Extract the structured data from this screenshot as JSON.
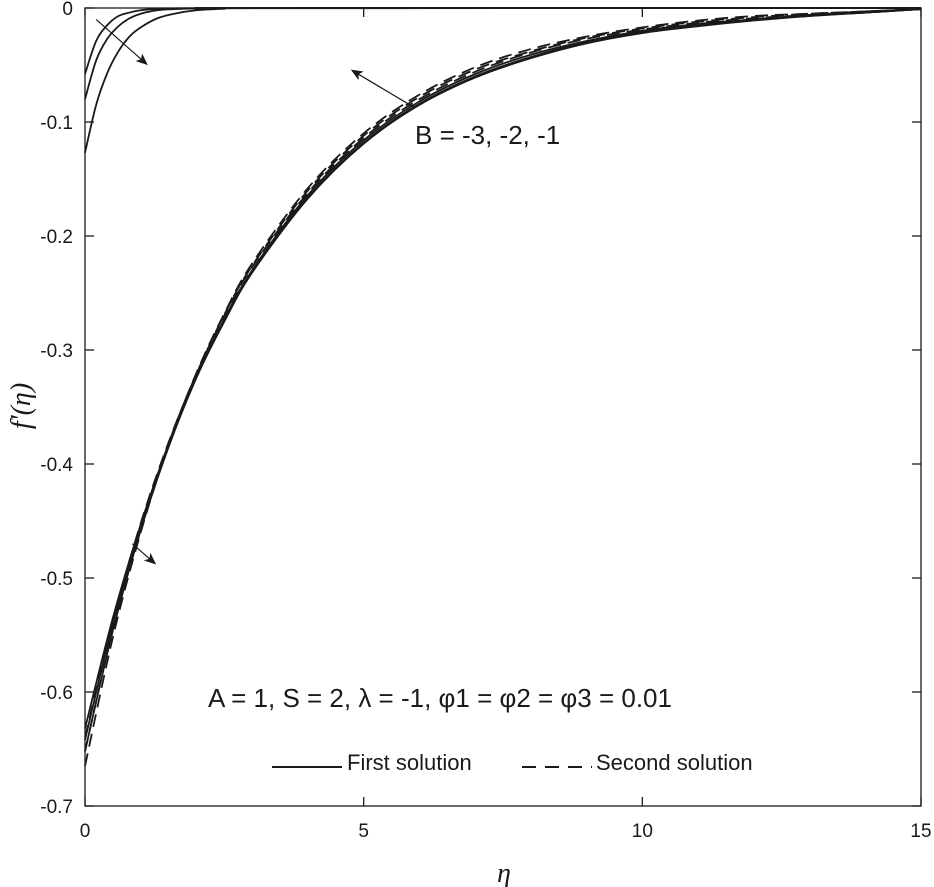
{
  "chart_data": {
    "type": "line",
    "xlabel": "η",
    "ylabel": "f'(η)",
    "xlim": [
      0,
      15
    ],
    "ylim": [
      -0.7,
      0
    ],
    "xticks": [
      "0",
      "5",
      "10",
      "15"
    ],
    "yticks": [
      "0",
      "-0.1",
      "-0.2",
      "-0.3",
      "-0.4",
      "-0.5",
      "-0.6",
      "-0.7"
    ],
    "grid": false,
    "parameter_label": "B = -3, -2, -1",
    "conditions_label": "A = 1,  S = 2,  λ = -1,  φ1 =  φ2 =  φ3 = 0.01",
    "legend": {
      "placement": "bottom-center",
      "entries": [
        {
          "label": "First solution",
          "style": "solid"
        },
        {
          "label": "Second solution",
          "style": "dashed"
        }
      ]
    },
    "series": [
      {
        "style": "solid",
        "group": "upper",
        "x": [
          0,
          0.2,
          0.4,
          0.6,
          0.8,
          1.0,
          1.3,
          1.6,
          2.0,
          2.5,
          3.0
        ],
        "y": [
          -0.127,
          -0.085,
          -0.057,
          -0.038,
          -0.025,
          -0.017,
          -0.009,
          -0.005,
          -0.002,
          -0.0007,
          -0.0002
        ]
      },
      {
        "style": "solid",
        "group": "upper",
        "x": [
          0,
          0.2,
          0.4,
          0.6,
          0.8,
          1.0,
          1.3,
          1.6,
          2.0,
          2.5,
          3.0
        ],
        "y": [
          -0.08,
          -0.046,
          -0.027,
          -0.016,
          -0.009,
          -0.005,
          -0.002,
          -0.001,
          -0.0004,
          -0.0001,
          0
        ]
      },
      {
        "style": "solid",
        "group": "upper",
        "x": [
          0,
          0.2,
          0.4,
          0.6,
          0.8,
          1.0,
          1.3,
          1.6,
          2.0,
          2.5,
          3.0
        ],
        "y": [
          -0.058,
          -0.029,
          -0.015,
          -0.007,
          -0.004,
          -0.002,
          -0.0007,
          -0.0003,
          -0.0001,
          0,
          0
        ]
      },
      {
        "style": "solid",
        "group": "lower",
        "x": [
          0,
          0.5,
          1,
          1.5,
          2,
          2.5,
          3,
          4,
          5,
          6,
          7,
          8,
          9,
          10,
          11,
          12,
          13,
          14,
          15
        ],
        "y": [
          -0.632,
          -0.535,
          -0.453,
          -0.383,
          -0.324,
          -0.275,
          -0.232,
          -0.167,
          -0.119,
          -0.085,
          -0.061,
          -0.044,
          -0.031,
          -0.022,
          -0.016,
          -0.011,
          -0.007,
          -0.004,
          -0.001
        ]
      },
      {
        "style": "solid",
        "group": "lower",
        "x": [
          0,
          0.5,
          1,
          1.5,
          2,
          2.5,
          3,
          4,
          5,
          6,
          7,
          8,
          9,
          10,
          11,
          12,
          13,
          14,
          15
        ],
        "y": [
          -0.642,
          -0.54,
          -0.455,
          -0.384,
          -0.324,
          -0.274,
          -0.231,
          -0.166,
          -0.118,
          -0.084,
          -0.06,
          -0.043,
          -0.03,
          -0.021,
          -0.015,
          -0.01,
          -0.007,
          -0.004,
          -0.001
        ]
      },
      {
        "style": "solid",
        "group": "lower",
        "x": [
          0,
          0.5,
          1,
          1.5,
          2,
          2.5,
          3,
          4,
          5,
          6,
          7,
          8,
          9,
          10,
          11,
          12,
          13,
          14,
          15
        ],
        "y": [
          -0.652,
          -0.546,
          -0.458,
          -0.385,
          -0.324,
          -0.273,
          -0.23,
          -0.164,
          -0.116,
          -0.082,
          -0.058,
          -0.041,
          -0.029,
          -0.02,
          -0.014,
          -0.01,
          -0.006,
          -0.004,
          -0.001
        ]
      },
      {
        "style": "dashed",
        "group": "lower",
        "x": [
          0,
          0.5,
          1,
          1.5,
          2,
          2.5,
          3,
          4,
          5,
          6,
          7,
          8,
          9,
          10,
          11,
          12,
          13,
          14,
          15
        ],
        "y": [
          -0.64,
          -0.538,
          -0.452,
          -0.381,
          -0.321,
          -0.27,
          -0.227,
          -0.162,
          -0.114,
          -0.08,
          -0.056,
          -0.039,
          -0.027,
          -0.019,
          -0.013,
          -0.009,
          -0.006,
          -0.003,
          -0.001
        ]
      },
      {
        "style": "dashed",
        "group": "lower",
        "x": [
          0,
          0.5,
          1,
          1.5,
          2,
          2.5,
          3,
          4,
          5,
          6,
          7,
          8,
          9,
          10,
          11,
          12,
          13,
          14,
          15
        ],
        "y": [
          -0.652,
          -0.545,
          -0.456,
          -0.382,
          -0.321,
          -0.269,
          -0.226,
          -0.16,
          -0.112,
          -0.078,
          -0.054,
          -0.038,
          -0.026,
          -0.018,
          -0.012,
          -0.008,
          -0.005,
          -0.003,
          -0.001
        ]
      },
      {
        "style": "dashed",
        "group": "lower",
        "x": [
          0,
          0.5,
          1,
          1.5,
          2,
          2.5,
          3,
          4,
          5,
          6,
          7,
          8,
          9,
          10,
          11,
          12,
          13,
          14,
          15
        ],
        "y": [
          -0.665,
          -0.552,
          -0.46,
          -0.383,
          -0.32,
          -0.268,
          -0.224,
          -0.158,
          -0.11,
          -0.076,
          -0.052,
          -0.036,
          -0.025,
          -0.017,
          -0.011,
          -0.007,
          -0.005,
          -0.003,
          -0.001
        ]
      }
    ],
    "arrows": [
      {
        "from": [
          0.2,
          -0.01
        ],
        "to": [
          1.1,
          -0.049
        ]
      },
      {
        "from": [
          5.9,
          -0.087
        ],
        "to": [
          4.8,
          -0.055
        ]
      },
      {
        "from": [
          0.85,
          -0.47
        ],
        "to": [
          1.25,
          -0.487
        ]
      }
    ]
  }
}
